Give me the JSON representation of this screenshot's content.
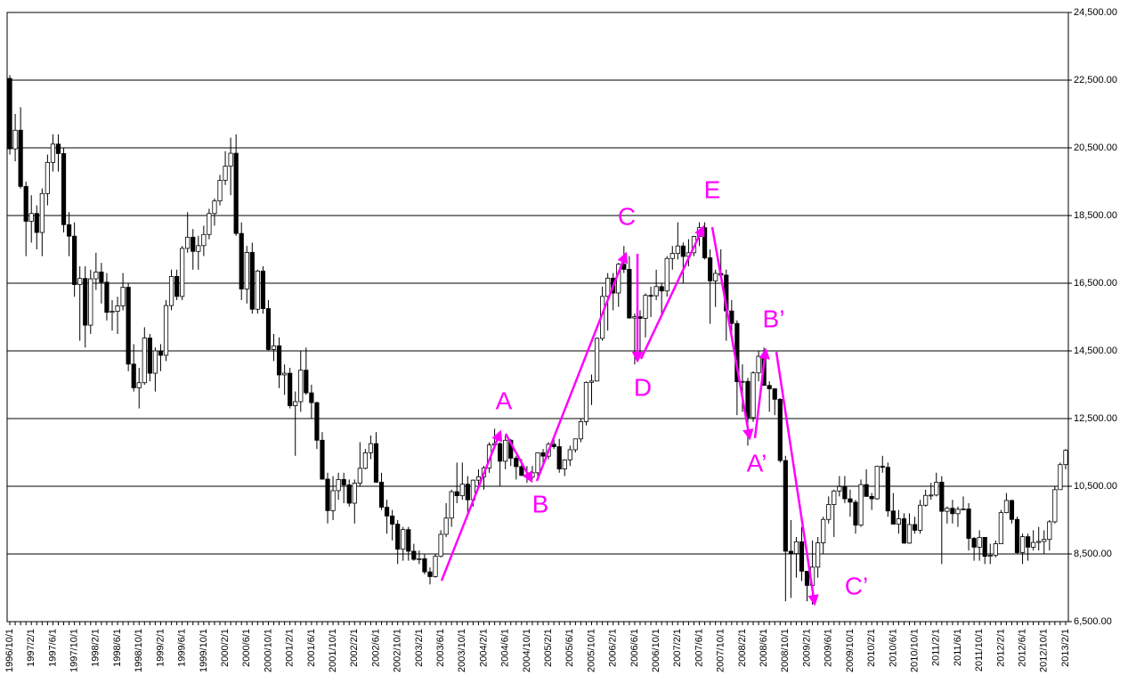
{
  "chart_data": {
    "type": "candlestick",
    "categories": [
      "1996/10/1",
      null,
      null,
      null,
      "1997/2/1",
      null,
      null,
      null,
      "1997/6/1",
      null,
      null,
      null,
      "1997/10/1",
      null,
      null,
      null,
      "1998/2/1",
      null,
      null,
      null,
      "1998/6/1",
      null,
      null,
      null,
      "1998/10/1",
      null,
      null,
      null,
      "1999/2/1",
      null,
      null,
      null,
      "1999/6/1",
      null,
      null,
      null,
      "1999/10/1",
      null,
      null,
      null,
      "2000/2/1",
      null,
      null,
      null,
      "2000/6/1",
      null,
      null,
      null,
      "2000/10/1",
      null,
      null,
      null,
      "2001/2/1",
      null,
      null,
      null,
      "2001/6/1",
      null,
      null,
      null,
      "2001/10/1",
      null,
      null,
      null,
      "2002/2/1",
      null,
      null,
      null,
      "2002/6/1",
      null,
      null,
      null,
      "2002/10/1",
      null,
      null,
      null,
      "2003/2/1",
      null,
      null,
      null,
      "2003/6/1",
      null,
      null,
      null,
      "2003/10/1",
      null,
      null,
      null,
      "2004/2/1",
      null,
      null,
      null,
      "2004/6/1",
      null,
      null,
      null,
      "2004/10/1",
      null,
      null,
      null,
      "2005/2/1",
      null,
      null,
      null,
      "2005/6/1",
      null,
      null,
      null,
      "2005/10/1",
      null,
      null,
      null,
      "2006/2/1",
      null,
      null,
      null,
      "2006/6/1",
      null,
      null,
      null,
      "2006/10/1",
      null,
      null,
      null,
      "2007/2/1",
      null,
      null,
      null,
      "2007/6/1",
      null,
      null,
      null,
      "2007/10/1",
      null,
      null,
      null,
      "2008/2/1",
      null,
      null,
      null,
      "2008/6/1",
      null,
      null,
      null,
      "2008/10/1",
      null,
      null,
      null,
      "2009/2/1",
      null,
      null,
      null,
      "2009/6/1",
      null,
      null,
      null,
      "2009/10/1",
      null,
      null,
      null,
      "2010/2/1",
      null,
      null,
      null,
      "2010/6/1",
      null,
      null,
      null,
      "2010/10/1",
      null,
      null,
      null,
      "2011/2/1",
      null,
      null,
      null,
      "2011/6/1",
      null,
      null,
      null,
      "2011/10/1",
      null,
      null,
      null,
      "2012/2/1",
      null,
      null,
      null,
      "2012/6/1",
      null,
      null,
      null,
      "2012/10/1",
      null,
      null,
      null,
      "2013/2/1"
    ],
    "open": [
      22550,
      20470,
      21020,
      19360,
      18330,
      18560,
      18000,
      19150,
      20070,
      20610,
      20330,
      18230,
      17890,
      16460,
      16640,
      15260,
      16630,
      16830,
      16530,
      15640,
      15670,
      15830,
      16380,
      14110,
      13410,
      13560,
      14880,
      13840,
      14500,
      14370,
      15840,
      16700,
      16110,
      17530,
      17860,
      17440,
      17610,
      17940,
      18560,
      18930,
      19540,
      19960,
      20340,
      17970,
      16330,
      17410,
      15730,
      16860,
      15750,
      14540,
      14650,
      13790,
      13840,
      12880,
      13000,
      13930,
      13260,
      12970,
      11860,
      10710,
      9780,
      10370,
      10700,
      10540,
      10000,
      10590,
      11030,
      11490,
      11760,
      10620,
      9880,
      9620,
      9380,
      8640,
      9220,
      8580,
      8340,
      8360,
      7970,
      7830,
      8430,
      9080,
      9560,
      10340,
      10220,
      10560,
      10100,
      10680,
      10780,
      11040,
      11720,
      11760,
      11240,
      11860,
      11330,
      11080,
      10820,
      10770,
      10900,
      11490,
      11390,
      11740,
      11670,
      11010,
      11280,
      11580,
      11900,
      12410,
      13570,
      13610,
      14870,
      16110,
      16650,
      16210,
      17060,
      16910,
      15470,
      15510,
      15460,
      16140,
      16130,
      16400,
      16270,
      17230,
      17380,
      17600,
      17290,
      17400,
      17880,
      18140,
      17250,
      16570,
      16790,
      16740,
      15680,
      15310,
      13590,
      13600,
      12530,
      13850,
      14340,
      13480,
      13380,
      13070,
      11260,
      8580,
      8510,
      8860,
      7990,
      7570,
      8110,
      8830,
      9520,
      9960,
      10360,
      10490,
      10130,
      10030,
      9350,
      10550,
      10200,
      10130,
      11090,
      11060,
      9770,
      9380,
      9540,
      8820,
      9370,
      9200,
      9940,
      10230,
      10240,
      10620,
      9760,
      9850,
      9690,
      9820,
      9830,
      8960,
      8700,
      8990,
      8430,
      8460,
      8800,
      9720,
      10080,
      9520,
      8540,
      9010,
      8700,
      8840,
      8870,
      8930,
      9450,
      10400,
      11140
    ],
    "high": [
      22650,
      21500,
      21700,
      19500,
      19100,
      18800,
      19300,
      20300,
      20900,
      20900,
      20500,
      18600,
      18300,
      17000,
      17000,
      16900,
      17400,
      17100,
      16800,
      16000,
      16100,
      16800,
      16500,
      14700,
      14000,
      15200,
      15000,
      14600,
      14700,
      16000,
      16900,
      16900,
      17600,
      18600,
      18100,
      17900,
      18200,
      18700,
      19000,
      19700,
      20400,
      20800,
      20900,
      18300,
      17600,
      17700,
      16900,
      17000,
      16000,
      15000,
      14900,
      14100,
      14000,
      13300,
      14500,
      14600,
      13500,
      13000,
      12100,
      10900,
      10800,
      10900,
      10900,
      10700,
      10700,
      11800,
      11600,
      12000,
      12100,
      10900,
      10100,
      9800,
      9500,
      9300,
      9300,
      8800,
      8600,
      8500,
      8100,
      8500,
      9200,
      10000,
      10400,
      11200,
      11200,
      10800,
      10700,
      11000,
      11100,
      11800,
      12200,
      11800,
      12000,
      11900,
      11400,
      11300,
      11100,
      11100,
      11500,
      11600,
      11800,
      12000,
      11900,
      11300,
      11700,
      11900,
      12500,
      13600,
      13800,
      14900,
      16400,
      16800,
      16800,
      17100,
      17600,
      17300,
      15600,
      15700,
      16200,
      16400,
      16900,
      16500,
      17300,
      17600,
      18300,
      17700,
      17800,
      17900,
      18300,
      18300,
      17500,
      16900,
      17500,
      16900,
      16000,
      15400,
      14100,
      13700,
      13900,
      14500,
      14600,
      13600,
      13400,
      13100,
      11400,
      9500,
      9000,
      9300,
      8000,
      8900,
      9000,
      9600,
      10200,
      10400,
      10800,
      10800,
      10400,
      10100,
      10700,
      11000,
      10300,
      11100,
      11400,
      11200,
      10300,
      9800,
      9700,
      9700,
      9600,
      10100,
      10400,
      10600,
      10900,
      10800,
      9900,
      10100,
      9900,
      10200,
      10000,
      9000,
      9200,
      9000,
      8800,
      8900,
      9800,
      10300,
      10100,
      9600,
      9100,
      9100,
      9200,
      9300,
      9200,
      9500,
      10500,
      11200,
      11600
    ],
    "low": [
      20300,
      20100,
      19300,
      17300,
      17700,
      17500,
      17300,
      18800,
      19800,
      19800,
      18000,
      17300,
      16100,
      14800,
      14600,
      15000,
      16300,
      15900,
      15400,
      15100,
      15000,
      15700,
      13900,
      13300,
      12800,
      13500,
      13600,
      13300,
      13900,
      14200,
      15700,
      16000,
      16000,
      17400,
      16900,
      16900,
      17300,
      17800,
      18200,
      18800,
      19400,
      19100,
      17900,
      16000,
      15900,
      15600,
      15600,
      15600,
      14500,
      14200,
      13400,
      13200,
      12800,
      11400,
      12700,
      13200,
      12500,
      11600,
      10700,
      9400,
      9500,
      10100,
      10000,
      9900,
      9400,
      10500,
      11000,
      11300,
      10600,
      9800,
      9100,
      8900,
      8200,
      8300,
      8300,
      8300,
      8200,
      7900,
      7600,
      7800,
      8400,
      9000,
      9300,
      10000,
      10100,
      9600,
      9900,
      10500,
      10400,
      10900,
      11600,
      10500,
      11000,
      11100,
      10700,
      10800,
      10600,
      10700,
      10800,
      11200,
      11300,
      11600,
      10900,
      10800,
      11100,
      11500,
      11800,
      12300,
      12900,
      13600,
      14800,
      15100,
      15700,
      15800,
      16800,
      15500,
      14100,
      14400,
      14900,
      15500,
      16000,
      15600,
      16100,
      16900,
      17200,
      16500,
      17000,
      17300,
      17600,
      17200,
      15300,
      15800,
      16700,
      14800,
      15000,
      12600,
      12700,
      11700,
      12400,
      13600,
      13500,
      12700,
      12600,
      11200,
      7100,
      7200,
      7800,
      7700,
      7100,
      7000,
      7800,
      8500,
      9400,
      9000,
      10200,
      10000,
      9600,
      9100,
      9300,
      10200,
      9800,
      10100,
      10900,
      9600,
      9400,
      9100,
      8800,
      8800,
      9100,
      9100,
      9900,
      10100,
      10200,
      8200,
      9400,
      9400,
      9300,
      9800,
      8600,
      8300,
      8300,
      8200,
      8200,
      8400,
      8800,
      9700,
      9400,
      8500,
      8200,
      8300,
      8600,
      8600,
      8500,
      8600,
      9400,
      10400,
      11000
    ],
    "close": [
      20470,
      21020,
      19360,
      18330,
      18560,
      18000,
      19150,
      20070,
      20610,
      20330,
      18230,
      17890,
      16460,
      16640,
      15260,
      16630,
      16830,
      16530,
      15640,
      15670,
      15830,
      16380,
      14110,
      13410,
      13560,
      14880,
      13840,
      14500,
      14370,
      15840,
      16700,
      16110,
      17530,
      17860,
      17440,
      17610,
      17940,
      18560,
      18930,
      19540,
      19960,
      20340,
      17970,
      16330,
      17410,
      15730,
      16860,
      15750,
      14540,
      14650,
      13790,
      13840,
      12880,
      13000,
      13930,
      13260,
      12970,
      11860,
      10710,
      9780,
      10370,
      10700,
      10540,
      10000,
      10590,
      11030,
      11490,
      11760,
      10620,
      9880,
      9620,
      9380,
      8640,
      9220,
      8580,
      8340,
      8360,
      7970,
      7830,
      8430,
      9080,
      9560,
      10340,
      10220,
      10560,
      10100,
      10680,
      10780,
      11040,
      11720,
      11760,
      11240,
      11860,
      11330,
      11080,
      10820,
      10770,
      10900,
      11490,
      11390,
      11740,
      11670,
      11010,
      11280,
      11580,
      11900,
      12410,
      13570,
      13610,
      14870,
      16110,
      16650,
      16210,
      17060,
      16910,
      15470,
      15510,
      15460,
      16140,
      16130,
      16400,
      16270,
      17230,
      17380,
      17600,
      17290,
      17400,
      17880,
      18140,
      17250,
      16570,
      16790,
      16740,
      15680,
      15310,
      13590,
      13600,
      12530,
      13850,
      14340,
      13480,
      13380,
      13070,
      11260,
      8580,
      8510,
      8860,
      7990,
      7570,
      8110,
      8830,
      9520,
      9960,
      10360,
      10490,
      10130,
      10030,
      9350,
      10550,
      10200,
      10130,
      11090,
      11060,
      9770,
      9380,
      9540,
      8820,
      9370,
      9200,
      9940,
      10230,
      10240,
      10620,
      9760,
      9850,
      9690,
      9820,
      9830,
      8960,
      8700,
      8990,
      8430,
      8460,
      8800,
      9720,
      10080,
      9520,
      8540,
      9010,
      8700,
      8840,
      8870,
      8930,
      9450,
      10400,
      11140,
      11560
    ],
    "up_color": "#ffffff",
    "down_color": "#000000",
    "annotation_color": "#ff00ff",
    "ylim": [
      6500,
      24500
    ],
    "yticks": [
      {
        "value": 6500,
        "label": "6,500.00"
      },
      {
        "value": 8500,
        "label": "8,500.00"
      },
      {
        "value": 10500,
        "label": "10,500.00"
      },
      {
        "value": 12500,
        "label": "12,500.00"
      },
      {
        "value": 14500,
        "label": "14,500.00"
      },
      {
        "value": 16500,
        "label": "16,500.00"
      },
      {
        "value": 18500,
        "label": "18,500.00"
      },
      {
        "value": 20500,
        "label": "20,500.00"
      },
      {
        "value": 22500,
        "label": "22,500.00"
      },
      {
        "value": 24500,
        "label": "24,500.00"
      }
    ],
    "grid": true,
    "annotations": [
      "A",
      "B",
      "C",
      "D",
      "E",
      "A’",
      "B’",
      "C’"
    ]
  }
}
